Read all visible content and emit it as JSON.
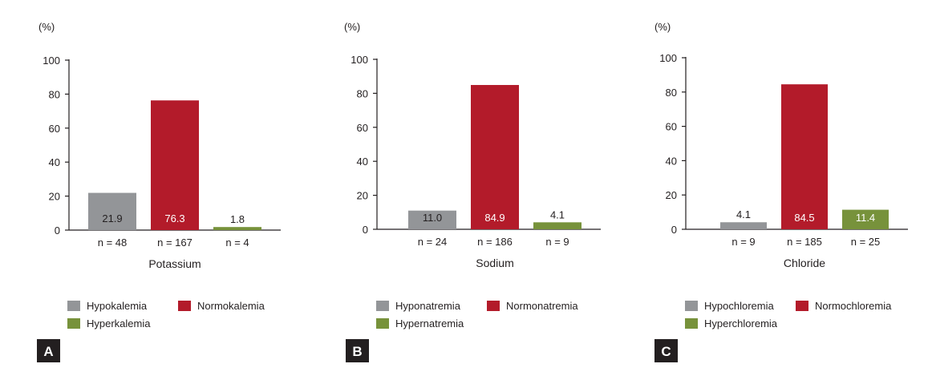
{
  "colors": {
    "low": "#939598",
    "normal": "#b31b2a",
    "high": "#77923b",
    "axis": "#231f20",
    "badge": "#231f20"
  },
  "chart_data": [
    {
      "type": "bar",
      "panel_letter": "A",
      "y_unit": "(%)",
      "xlabel": "Potassium",
      "ylim": [
        0,
        100
      ],
      "yticks": [
        "0",
        "20",
        "40",
        "60",
        "80",
        "100"
      ],
      "categories": [
        "n = 48",
        "n = 167",
        "n = 4"
      ],
      "values": [
        21.9,
        76.3,
        1.8
      ],
      "value_labels": [
        "21.9",
        "76.3",
        "1.8"
      ],
      "legend": [
        "Hypokalemia",
        "Normokalemia",
        "Hyperkalemia"
      ]
    },
    {
      "type": "bar",
      "panel_letter": "B",
      "y_unit": "(%)",
      "xlabel": "Sodium",
      "ylim": [
        0,
        100
      ],
      "yticks": [
        "0",
        "20",
        "40",
        "60",
        "80",
        "100"
      ],
      "categories": [
        "n = 24",
        "n = 186",
        "n = 9"
      ],
      "values": [
        11.0,
        84.9,
        4.1
      ],
      "value_labels": [
        "11.0",
        "84.9",
        "4.1"
      ],
      "legend": [
        "Hyponatremia",
        "Normonatremia",
        "Hypernatremia"
      ]
    },
    {
      "type": "bar",
      "panel_letter": "C",
      "y_unit": "(%)",
      "xlabel": "Chloride",
      "ylim": [
        0,
        100
      ],
      "yticks": [
        "0",
        "20",
        "40",
        "60",
        "80",
        "100"
      ],
      "categories": [
        "n = 9",
        "n = 185",
        "n = 25"
      ],
      "values": [
        4.1,
        84.5,
        11.4
      ],
      "value_labels": [
        "4.1",
        "84.5",
        "11.4"
      ],
      "legend": [
        "Hypochloremia",
        "Normochloremia",
        "Hyperchloremia"
      ]
    }
  ]
}
